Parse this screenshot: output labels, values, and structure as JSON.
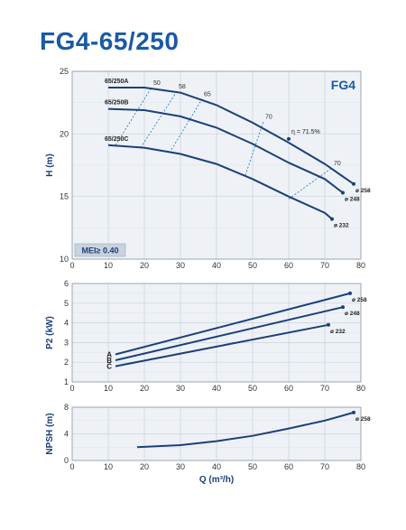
{
  "title": "FG4-65/250",
  "chart_data": [
    {
      "type": "line",
      "panel_label": "FG4",
      "ylabel": "H (m)",
      "xlim": [
        0,
        80
      ],
      "ylim": [
        10,
        25
      ],
      "xticks": [
        0,
        10,
        20,
        30,
        40,
        50,
        60,
        70,
        80
      ],
      "yticks": [
        10,
        15,
        20,
        25
      ],
      "grid": true,
      "badge": "MEI≥ 0.40",
      "series": [
        {
          "name": "65/250A",
          "end_label": "ø 258",
          "x": [
            10,
            20,
            30,
            40,
            50,
            60,
            70,
            78
          ],
          "y": [
            23.7,
            23.7,
            23.3,
            22.3,
            20.9,
            19.3,
            17.6,
            16.0
          ]
        },
        {
          "name": "65/250B",
          "end_label": "ø 248",
          "x": [
            10,
            20,
            30,
            40,
            50,
            60,
            70,
            75
          ],
          "y": [
            22.0,
            21.9,
            21.4,
            20.5,
            19.2,
            17.7,
            16.4,
            15.3
          ]
        },
        {
          "name": "65/250C",
          "end_label": "ø 232",
          "x": [
            10,
            20,
            30,
            40,
            50,
            60,
            70,
            72
          ],
          "y": [
            19.1,
            18.9,
            18.4,
            17.6,
            16.4,
            15.0,
            13.7,
            13.2
          ]
        }
      ],
      "efficiency_lines": [
        {
          "label": "50",
          "x": [
            12,
            22
          ],
          "y": [
            19.1,
            23.7
          ]
        },
        {
          "label": "58",
          "x": [
            19,
            29
          ],
          "y": [
            18.9,
            23.4
          ]
        },
        {
          "label": "65",
          "x": [
            27,
            36
          ],
          "y": [
            18.5,
            22.8
          ]
        },
        {
          "label": "70",
          "x": [
            48,
            53
          ],
          "y": [
            16.7,
            21.0
          ]
        },
        {
          "label": "70",
          "x": [
            60,
            72
          ],
          "y": [
            14.8,
            17.3
          ]
        }
      ],
      "annotations": [
        {
          "text": "η = 71.5%",
          "x": 60,
          "y": 19.6
        }
      ]
    },
    {
      "type": "line",
      "ylabel": "P2 (kW)",
      "xlim": [
        0,
        80
      ],
      "ylim": [
        1,
        6
      ],
      "xticks": [
        0,
        10,
        20,
        30,
        40,
        50,
        60,
        70,
        80
      ],
      "yticks": [
        1,
        2,
        3,
        4,
        5,
        6
      ],
      "grid": true,
      "series": [
        {
          "name": "A",
          "end_label": "ø 258",
          "x": [
            12,
            77
          ],
          "y": [
            2.4,
            5.5
          ]
        },
        {
          "name": "B",
          "end_label": "ø 248",
          "x": [
            12,
            75
          ],
          "y": [
            2.1,
            4.8
          ]
        },
        {
          "name": "C",
          "end_label": "ø 232",
          "x": [
            12,
            71
          ],
          "y": [
            1.8,
            3.9
          ]
        }
      ]
    },
    {
      "type": "line",
      "ylabel": "NPSH (m)",
      "xlabel": "Q (m³/h)",
      "xlim": [
        0,
        80
      ],
      "ylim": [
        0,
        8
      ],
      "xticks": [
        0,
        10,
        20,
        30,
        40,
        50,
        60,
        70,
        80
      ],
      "yticks": [
        0,
        4,
        8
      ],
      "grid": true,
      "series": [
        {
          "name": "",
          "end_label": "ø 258",
          "x": [
            18,
            30,
            40,
            50,
            60,
            70,
            78
          ],
          "y": [
            2.0,
            2.3,
            2.9,
            3.7,
            4.8,
            6.0,
            7.2
          ]
        }
      ]
    }
  ]
}
